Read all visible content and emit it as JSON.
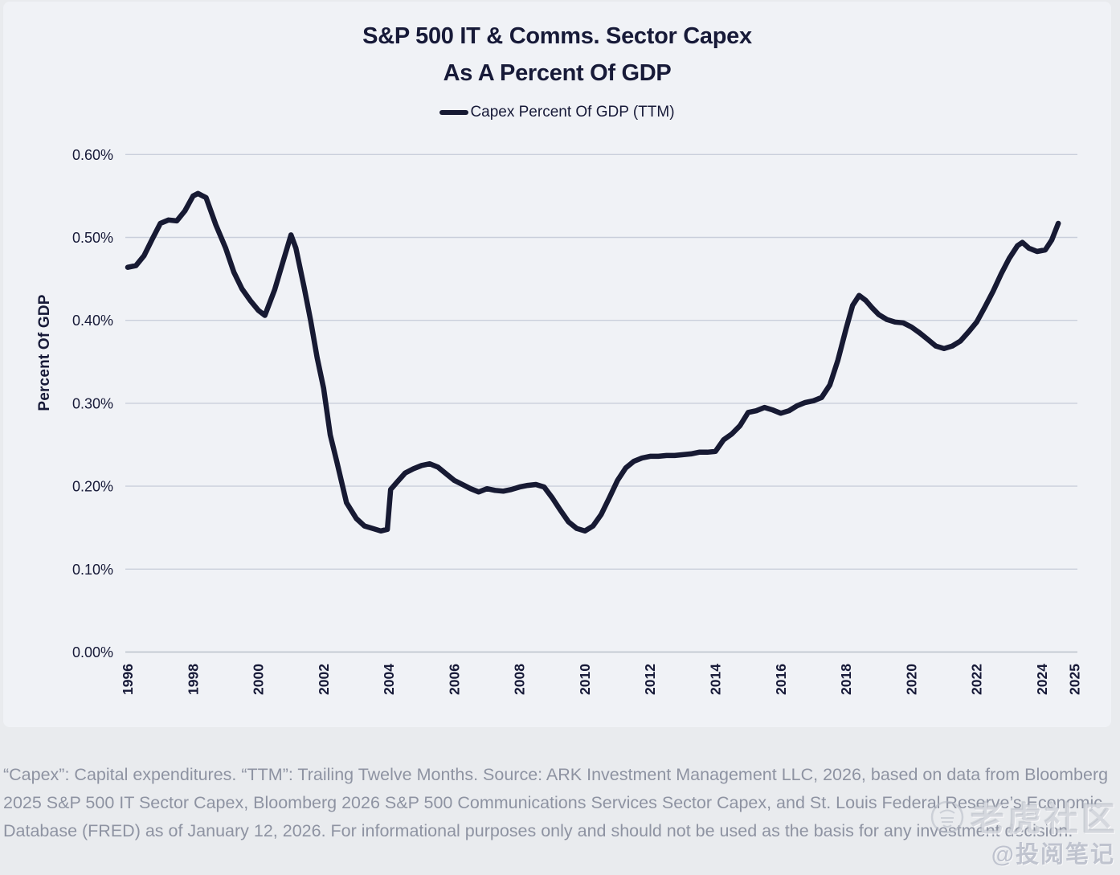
{
  "chart": {
    "title_line1": "S&P 500 IT & Comms. Sector Capex",
    "title_line2": "As A Percent Of GDP",
    "legend_label": "Capex Percent Of GDP (TTM)",
    "y_axis_title": "Percent Of GDP"
  },
  "chart_data": {
    "type": "line",
    "title": "S&P 500 IT & Comms. Sector Capex As A Percent Of GDP",
    "ylabel": "Percent Of GDP",
    "xlabel": "",
    "legend": [
      "Capex Percent Of GDP (TTM)"
    ],
    "legend_position": "top-center",
    "grid": true,
    "ylim": [
      0.0,
      0.6
    ],
    "y_tick_step": 0.1,
    "y_tick_labels": [
      "0.00%",
      "0.10%",
      "0.20%",
      "0.30%",
      "0.40%",
      "0.50%",
      "0.60%"
    ],
    "xlim": [
      1996,
      2025
    ],
    "x_tick_labels": [
      "1996",
      "1998",
      "2000",
      "2002",
      "2004",
      "2006",
      "2008",
      "2010",
      "2012",
      "2014",
      "2016",
      "2018",
      "2020",
      "2022",
      "2024",
      "2025"
    ],
    "series": [
      {
        "name": "Capex Percent Of GDP (TTM)",
        "x": [
          1996.0,
          1996.25,
          1996.5,
          1996.75,
          1997.0,
          1997.25,
          1997.5,
          1997.75,
          1998.0,
          1998.15,
          1998.4,
          1998.7,
          1999.0,
          1999.25,
          1999.5,
          1999.75,
          2000.0,
          2000.2,
          2000.5,
          2000.75,
          2001.0,
          2001.15,
          2001.4,
          2001.6,
          2001.8,
          2002.0,
          2002.2,
          2002.4,
          2002.7,
          2003.0,
          2003.25,
          2003.5,
          2003.75,
          2003.95,
          2004.05,
          2004.25,
          2004.5,
          2004.75,
          2005.0,
          2005.25,
          2005.5,
          2005.75,
          2006.0,
          2006.25,
          2006.5,
          2006.75,
          2007.0,
          2007.25,
          2007.5,
          2007.75,
          2008.0,
          2008.25,
          2008.5,
          2008.75,
          2009.0,
          2009.25,
          2009.5,
          2009.75,
          2010.0,
          2010.25,
          2010.5,
          2010.75,
          2011.0,
          2011.25,
          2011.5,
          2011.75,
          2012.0,
          2012.25,
          2012.5,
          2012.75,
          2013.0,
          2013.25,
          2013.5,
          2013.75,
          2014.0,
          2014.25,
          2014.5,
          2014.75,
          2015.0,
          2015.25,
          2015.5,
          2015.75,
          2016.0,
          2016.25,
          2016.5,
          2016.75,
          2017.0,
          2017.25,
          2017.5,
          2017.75,
          2018.0,
          2018.2,
          2018.4,
          2018.6,
          2018.8,
          2019.0,
          2019.25,
          2019.5,
          2019.75,
          2020.0,
          2020.25,
          2020.5,
          2020.75,
          2021.0,
          2021.25,
          2021.5,
          2021.75,
          2022.0,
          2022.25,
          2022.5,
          2022.75,
          2023.0,
          2023.25,
          2023.4,
          2023.6,
          2023.85,
          2024.1,
          2024.3,
          2024.5
        ],
        "y": [
          0.464,
          0.466,
          0.478,
          0.498,
          0.517,
          0.521,
          0.52,
          0.532,
          0.55,
          0.553,
          0.548,
          0.515,
          0.487,
          0.458,
          0.438,
          0.424,
          0.412,
          0.406,
          0.437,
          0.47,
          0.503,
          0.487,
          0.44,
          0.4,
          0.355,
          0.318,
          0.262,
          0.23,
          0.18,
          0.161,
          0.152,
          0.149,
          0.146,
          0.148,
          0.196,
          0.205,
          0.216,
          0.221,
          0.225,
          0.227,
          0.223,
          0.215,
          0.207,
          0.202,
          0.197,
          0.193,
          0.197,
          0.195,
          0.194,
          0.196,
          0.199,
          0.201,
          0.202,
          0.199,
          0.186,
          0.171,
          0.157,
          0.149,
          0.146,
          0.152,
          0.166,
          0.186,
          0.207,
          0.222,
          0.23,
          0.234,
          0.236,
          0.236,
          0.237,
          0.237,
          0.238,
          0.239,
          0.241,
          0.241,
          0.242,
          0.256,
          0.263,
          0.273,
          0.289,
          0.291,
          0.295,
          0.292,
          0.288,
          0.291,
          0.297,
          0.301,
          0.303,
          0.307,
          0.322,
          0.352,
          0.39,
          0.418,
          0.43,
          0.424,
          0.415,
          0.407,
          0.401,
          0.398,
          0.397,
          0.392,
          0.385,
          0.377,
          0.369,
          0.366,
          0.369,
          0.375,
          0.386,
          0.398,
          0.416,
          0.435,
          0.456,
          0.475,
          0.49,
          0.494,
          0.487,
          0.483,
          0.485,
          0.497,
          0.517
        ]
      }
    ]
  },
  "footer": {
    "disclaimer": "“Capex”: Capital expenditures. “TTM”: Trailing Twelve Months. Source: ARK Investment Management LLC, 2026, based on data from Bloomberg 2025 S&P 500 IT Sector Capex, Bloomberg 2026 S&P 500 Communications Services Sector Capex, and St. Louis Federal Reserve’s Economic Database (FRED) as of January 12, 2026. For informational purposes only and should not be used as the basis for any investment decision."
  },
  "watermark": {
    "community_name": "老虎社区",
    "handle": "@投阅笔记"
  },
  "colors": {
    "line": "#171a33",
    "title_text": "#171a38",
    "axis_text": "#171a38",
    "grid": "#cacfdb",
    "axis_line": "#b9bfca",
    "card_bg": "#f0f2f6",
    "page_bg": "#e9ebee",
    "footer_text": "#8e93a2"
  }
}
